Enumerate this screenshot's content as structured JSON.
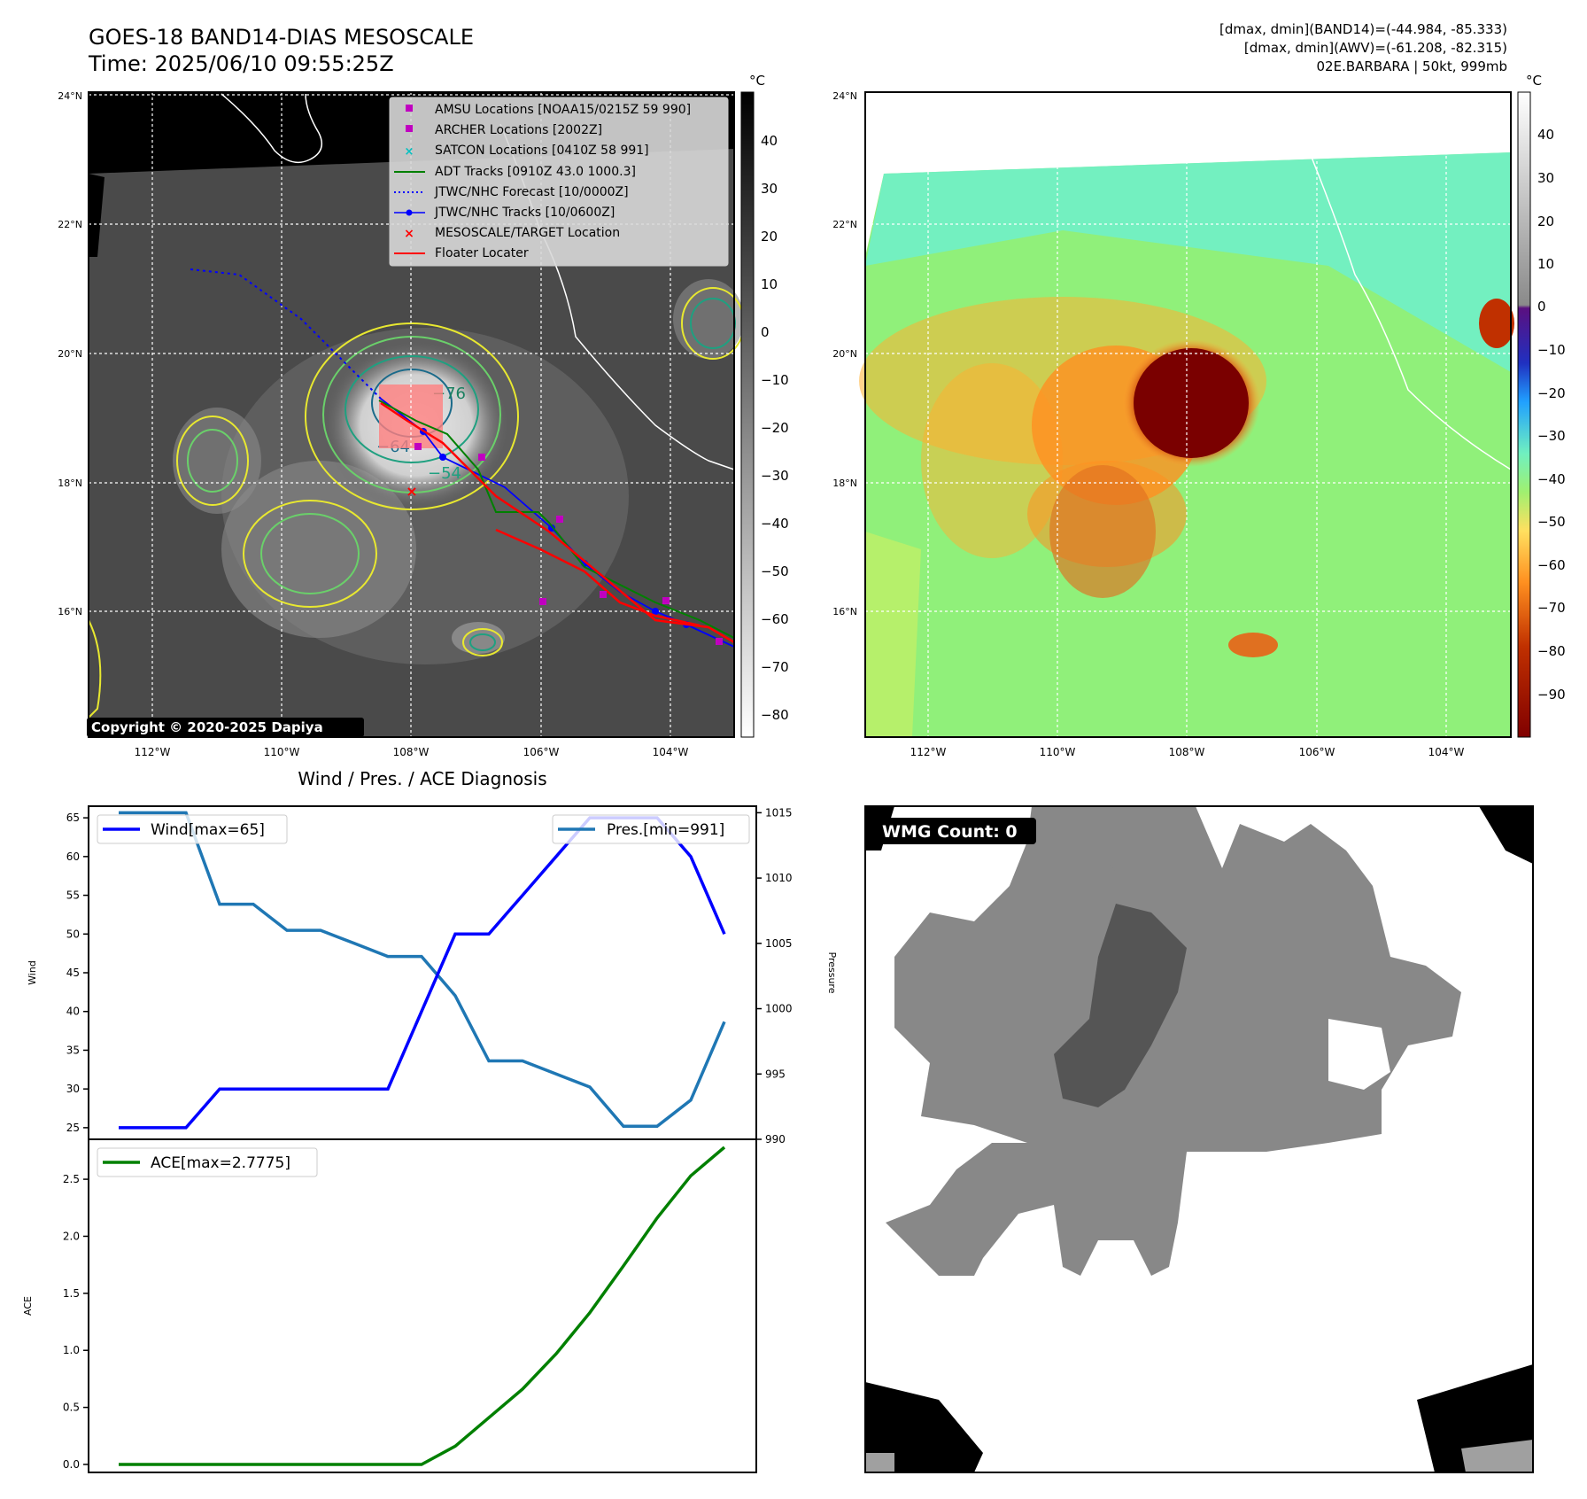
{
  "header": {
    "title_line1": "GOES-18 BAND14-DIAS MESOSCALE",
    "title_line2": "Time: 2025/06/10 09:55:25Z",
    "info_line1": "[dmax, dmin](BAND14)=(-44.984, -85.333)",
    "info_line2": "[dmax, dmin](AWV)=(-61.208, -82.315)",
    "info_line3": "02E.BARBARA | 50kt, 999mb"
  },
  "ir_map": {
    "lat_labels": [
      "24°N",
      "22°N",
      "20°N",
      "18°N",
      "16°N"
    ],
    "lon_labels": [
      "112°W",
      "110°W",
      "108°W",
      "106°W",
      "104°W"
    ],
    "colorbar_unit": "°C",
    "colorbar_ticks": [
      "40",
      "30",
      "20",
      "10",
      "0",
      "−10",
      "−20",
      "−30",
      "−40",
      "−50",
      "−60",
      "−70",
      "−80"
    ],
    "contour_labels": [
      "−76",
      "−64",
      "−54"
    ],
    "legend": [
      "AMSU Locations [NOAA15/0215Z 59 990]",
      "ARCHER Locations [2002Z]",
      "SATCON Locations [0410Z 58 991]",
      "ADT Tracks [0910Z 43.0 1000.3]",
      "JTWC/NHC Forecast [10/0000Z]",
      "JTWC/NHC Tracks [10/0600Z]",
      "MESOSCALE/TARGET Location",
      "Floater Locater"
    ],
    "copyright": "Copyright © 2020-2025 Dapiya",
    "colors": {
      "amsu": "#c000c0",
      "archer": "#c000c0",
      "satcon": "#00c0c0",
      "adt": "#008000",
      "forecast": "#0000ff",
      "tracks": "#0000ff",
      "target": "#ff0000",
      "floater": "#ff0000"
    }
  },
  "awv_map": {
    "lat_labels": [
      "24°N",
      "22°N",
      "20°N",
      "18°N",
      "16°N"
    ],
    "lon_labels": [
      "112°W",
      "110°W",
      "108°W",
      "106°W",
      "104°W"
    ],
    "colorbar_unit": "°C",
    "colorbar_ticks": [
      "40",
      "30",
      "20",
      "10",
      "0",
      "−10",
      "−20",
      "−30",
      "−40",
      "−50",
      "−60",
      "−70",
      "−80",
      "−90"
    ]
  },
  "diagnosis": {
    "title": "Wind / Pres. / ACE Diagnosis",
    "wind_axis_label": "Wind",
    "pressure_axis_label": "Pressure",
    "ace_axis_label": "ACE",
    "wind_ticks": [
      "65",
      "60",
      "55",
      "50",
      "45",
      "40",
      "35",
      "30",
      "25"
    ],
    "pressure_ticks": [
      "1015",
      "1010",
      "1005",
      "1000",
      "995",
      "990"
    ],
    "ace_ticks": [
      "2.5",
      "2.0",
      "1.5",
      "1.0",
      "0.5",
      "0.0"
    ],
    "legend_wind": "Wind[max=65]",
    "legend_pres": "Pres.[min=991]",
    "legend_ace": "ACE[max=2.7775]"
  },
  "wmg": {
    "label": "WMG Count: 0"
  },
  "chart_data": [
    {
      "type": "line",
      "title": "Wind / Pres. / ACE Diagnosis",
      "ylabel": "Wind",
      "ylim": [
        23.5,
        66.5
      ],
      "series": [
        {
          "name": "Wind[max=65]",
          "color": "#0000ff",
          "values": [
            25,
            25,
            25,
            30,
            30,
            30,
            30,
            30,
            30,
            40,
            50,
            50,
            55,
            60,
            65,
            65,
            65,
            60,
            50
          ]
        }
      ]
    },
    {
      "type": "line",
      "ylabel": "Pressure",
      "ylim": [
        990,
        1015.5
      ],
      "series": [
        {
          "name": "Pres.[min=991]",
          "color": "#1f77b4",
          "values": [
            1015,
            1015,
            1015,
            1008,
            1008,
            1006,
            1006,
            1005,
            1004,
            1004,
            1001,
            996,
            996,
            995,
            994,
            991,
            991,
            993,
            999
          ]
        }
      ]
    },
    {
      "type": "line",
      "ylabel": "ACE",
      "ylim": [
        -0.07,
        2.85
      ],
      "series": [
        {
          "name": "ACE[max=2.7775]",
          "color": "#008000",
          "values": [
            0,
            0,
            0,
            0,
            0,
            0,
            0,
            0,
            0,
            0,
            0.16,
            0.41,
            0.66,
            0.97,
            1.33,
            1.74,
            2.16,
            2.53,
            2.78
          ]
        }
      ]
    }
  ]
}
